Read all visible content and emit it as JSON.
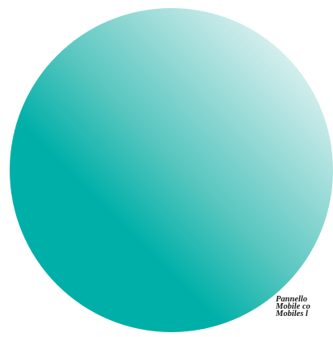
{
  "graphic": {
    "gradient_colors": [
      "#00b0a8",
      "#ffffff"
    ]
  },
  "caption": {
    "lines": [
      "Pannello",
      "Mobile co",
      "Mobiles l"
    ]
  }
}
